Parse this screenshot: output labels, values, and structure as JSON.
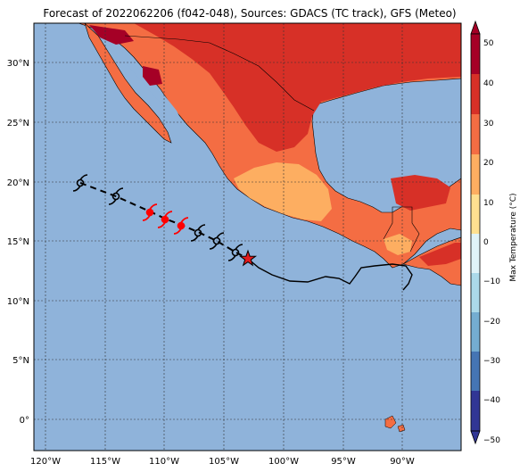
{
  "title": "Forecast of 2022062206 (f042-048), Sources: GDACS (TC track), GFS (Meteo)",
  "colors": {
    "ocean": "#8fb3da",
    "land_hot": "#d73027",
    "land_warm": "#f46d43",
    "land_mild": "#fdae61",
    "land_very_hot": "#a50026",
    "track_past": "#000000",
    "forecast_red": "#ff0000",
    "star": "#e31a1c"
  },
  "lat_labels": [
    "30°N",
    "25°N",
    "20°N",
    "15°N",
    "10°N",
    "5°N",
    "0°"
  ],
  "lon_labels": [
    "120°W",
    "115°W",
    "110°W",
    "105°W",
    "100°W",
    "95°W",
    "90°W"
  ],
  "colorbar": {
    "label": "Max Temperature (°C)",
    "ticks": [
      "50",
      "40",
      "30",
      "20",
      "10",
      "0",
      "−10",
      "−20",
      "−30",
      "−40",
      "−50"
    ],
    "colors": [
      "#a50026",
      "#d73027",
      "#f46d43",
      "#fdae61",
      "#fee090",
      "#e0f3f8",
      "#abd9e9",
      "#74add1",
      "#4575b4",
      "#313695"
    ]
  },
  "track_symbols": [
    {
      "type": "hurricane-icon",
      "color": "black"
    },
    {
      "type": "hurricane-icon",
      "color": "black"
    },
    {
      "type": "hurricane-icon",
      "color": "red"
    },
    {
      "type": "hurricane-icon",
      "color": "red"
    },
    {
      "type": "hurricane-icon",
      "color": "red"
    },
    {
      "type": "hurricane-icon",
      "color": "black"
    },
    {
      "type": "hurricane-icon",
      "color": "black"
    },
    {
      "type": "hurricane-icon",
      "color": "black"
    },
    {
      "type": "star-icon",
      "color": "red"
    }
  ]
}
